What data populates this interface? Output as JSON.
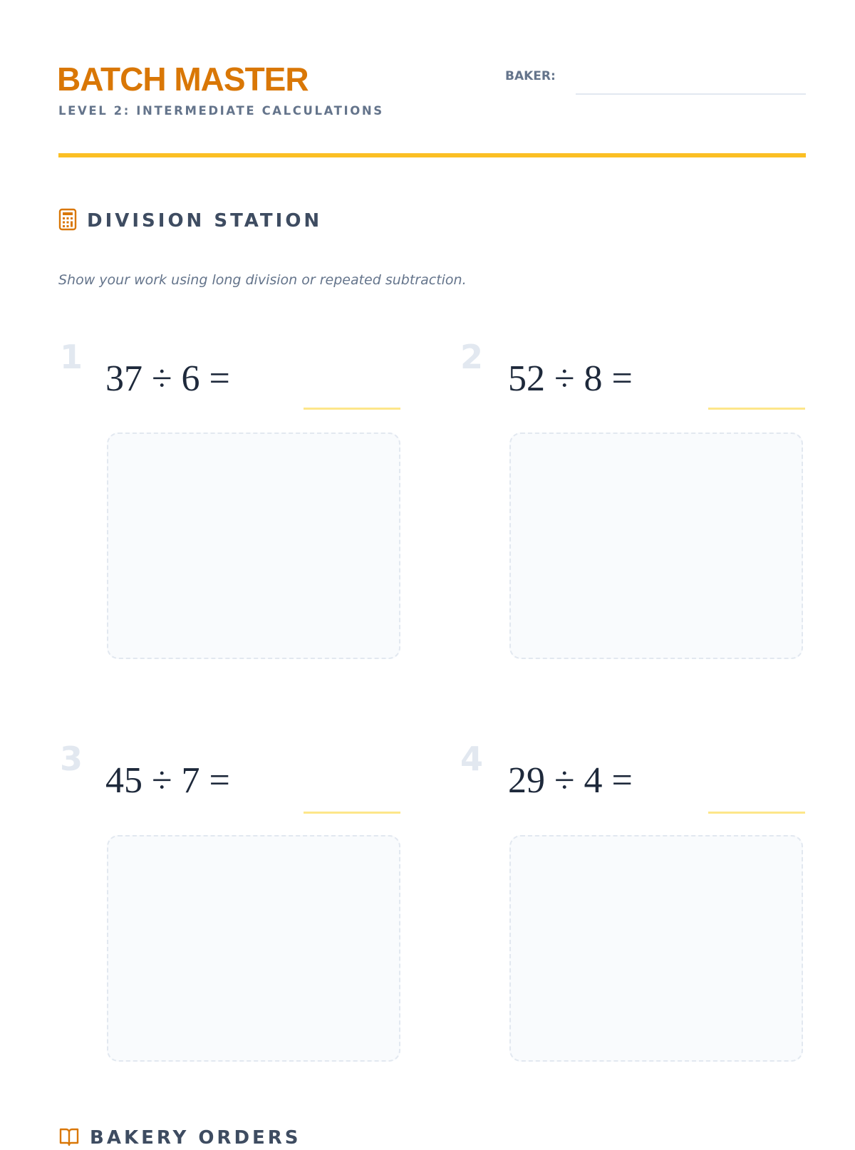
{
  "header": {
    "title": "BATCH MASTER",
    "subtitle": "LEVEL 2: INTERMEDIATE CALCULATIONS",
    "baker_label": "BAKER:",
    "baker_value": ""
  },
  "colors": {
    "accent": "#d97706",
    "rule": "#fbbf24",
    "heading": "#3e4c61",
    "muted": "#64748b",
    "answer_line": "#fde68a"
  },
  "division": {
    "heading": "DIVISION STATION",
    "icon": "calculator-icon",
    "instructions": "Show your work using long division or repeated subtraction.",
    "problems": [
      {
        "number": "1",
        "expression": "37 ÷ 6 ="
      },
      {
        "number": "2",
        "expression": "52 ÷ 8 ="
      },
      {
        "number": "3",
        "expression": "45 ÷ 7 ="
      },
      {
        "number": "4",
        "expression": "29 ÷ 4 ="
      }
    ]
  },
  "orders": {
    "heading": "BAKERY ORDERS",
    "icon": "book-open-icon"
  }
}
